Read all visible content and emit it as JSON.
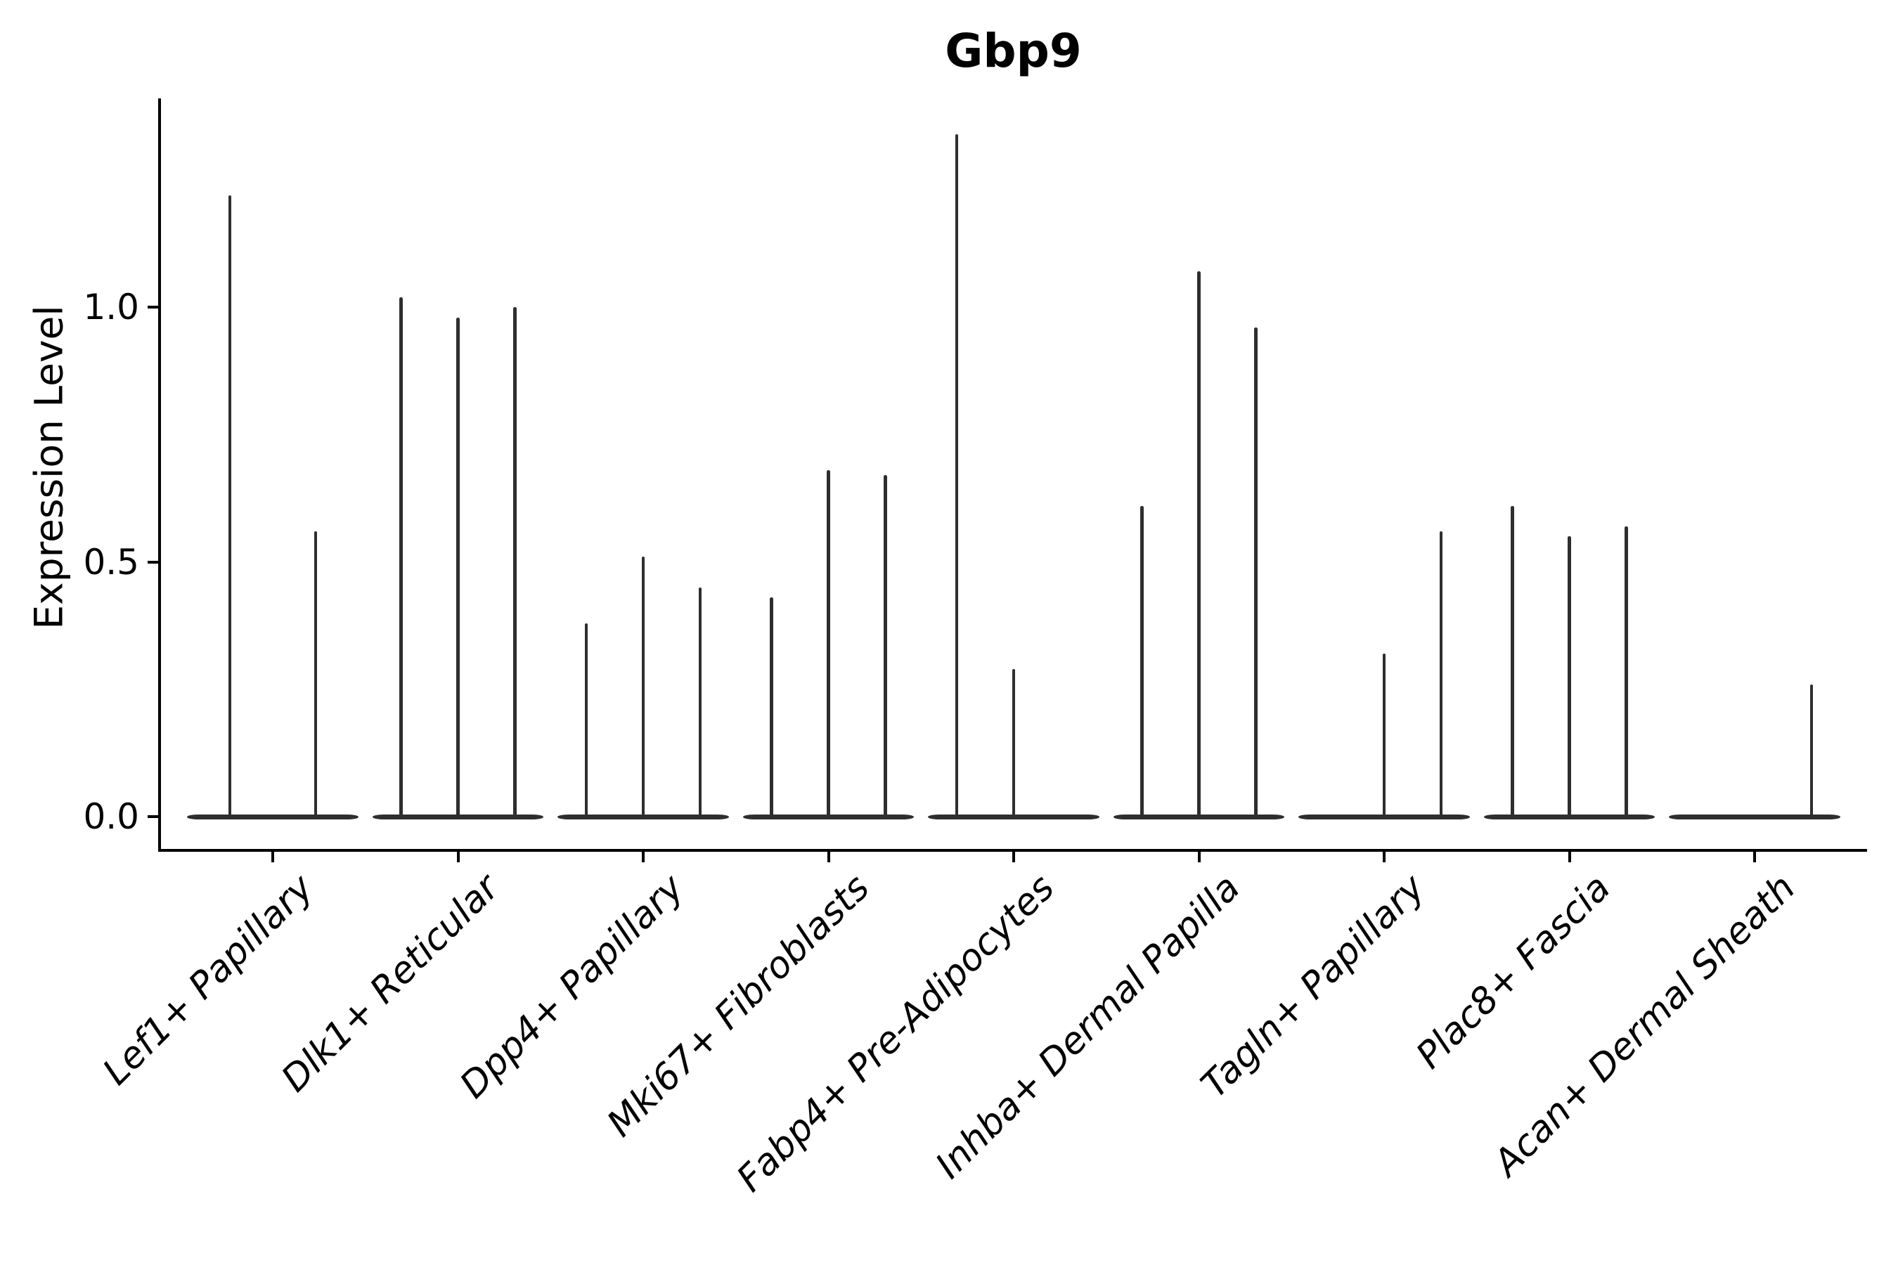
{
  "chart_data": {
    "type": "violin",
    "title": "Gbp9",
    "ylabel": "Expression Level",
    "xlabel": "",
    "grid": false,
    "legend_position": "none",
    "ylim": [
      -0.066,
      1.41
    ],
    "yticks": [
      {
        "value": 0.0,
        "label": "0.0"
      },
      {
        "value": 0.5,
        "label": "0.5"
      },
      {
        "value": 1.0,
        "label": "1.0"
      }
    ],
    "categories": [
      "Lef1+ Papillary",
      "Dlk1+ Reticular",
      "Dpp4+ Papillary",
      "Mki67+ Fibroblasts",
      "Fabp4+ Pre-Adipocytes",
      "Inhba+ Dermal Papilla",
      "Tagln+ Papillary",
      "Plac8+ Fascia",
      "Acan+ Dermal Sheath"
    ],
    "violins": [
      {
        "category": "Lef1+ Papillary",
        "maxima": [
          1.22,
          0.56
        ]
      },
      {
        "category": "Dlk1+ Reticular",
        "maxima": [
          1.02,
          0.98,
          1.0
        ]
      },
      {
        "category": "Dpp4+ Papillary",
        "maxima": [
          0.38,
          0.51,
          0.45
        ]
      },
      {
        "category": "Mki67+ Fibroblasts",
        "maxima": [
          0.43,
          0.68,
          0.67
        ]
      },
      {
        "category": "Fabp4+ Pre-Adipocytes",
        "maxima": [
          1.34,
          0.29,
          0.0
        ]
      },
      {
        "category": "Inhba+ Dermal Papilla",
        "maxima": [
          0.61,
          1.07,
          0.96
        ]
      },
      {
        "category": "Tagln+ Papillary",
        "maxima": [
          0.0,
          0.32,
          0.56
        ]
      },
      {
        "category": "Plac8+ Fascia",
        "maxima": [
          0.61,
          0.55,
          0.57
        ]
      },
      {
        "category": "Acan+ Dermal Sheath",
        "maxima": [
          0.0,
          0.0,
          0.26
        ]
      }
    ],
    "colors": {
      "violin": "#2e2e2e",
      "axis": "#000000",
      "background": "#ffffff"
    }
  }
}
